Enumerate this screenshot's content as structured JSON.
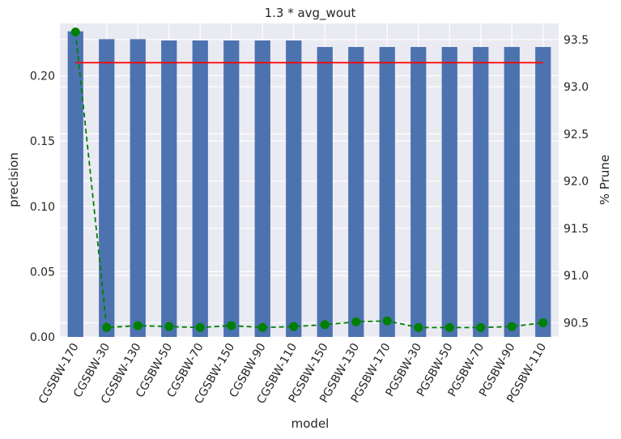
{
  "chart_data": {
    "type": "bar",
    "title": "1.3 * avg_wout",
    "xlabel": "model",
    "ylabel": "precision",
    "y2label": "% Prune",
    "categories": [
      "CGSBW-170",
      "CGSBW-30",
      "CGSBW-130",
      "CGSBW-50",
      "CGSBW-70",
      "CGSBW-150",
      "CGSBW-90",
      "CGSBW-110",
      "PGSBW-150",
      "PGSBW-130",
      "PGSBW-170",
      "PGSBW-30",
      "PGSBW-50",
      "PGSBW-70",
      "PGSBW-90",
      "PGSBW-110"
    ],
    "ylim": [
      0,
      0.24
    ],
    "y2lim": [
      90.35,
      93.67
    ],
    "yticks": [
      "0.00",
      "0.05",
      "0.10",
      "0.15",
      "0.20"
    ],
    "y2ticks": [
      "90.5",
      "91.0",
      "91.5",
      "92.0",
      "92.5",
      "93.0",
      "93.5"
    ],
    "grid": true,
    "series": [
      {
        "kind": "bar",
        "axis": "left",
        "color": "#4c72b0",
        "values": [
          0.234,
          0.228,
          0.228,
          0.227,
          0.227,
          0.227,
          0.227,
          0.227,
          0.222,
          0.222,
          0.222,
          0.222,
          0.222,
          0.222,
          0.222,
          0.222
        ]
      },
      {
        "kind": "hline",
        "axis": "left",
        "color": "#ff0000",
        "value": 0.21
      },
      {
        "kind": "line",
        "axis": "right",
        "style": "dashed",
        "marker": "circle",
        "color": "#008000",
        "values": [
          93.58,
          90.45,
          90.47,
          90.46,
          90.45,
          90.47,
          90.45,
          90.46,
          90.48,
          90.51,
          90.52,
          90.45,
          90.45,
          90.45,
          90.46,
          90.5
        ]
      }
    ]
  }
}
